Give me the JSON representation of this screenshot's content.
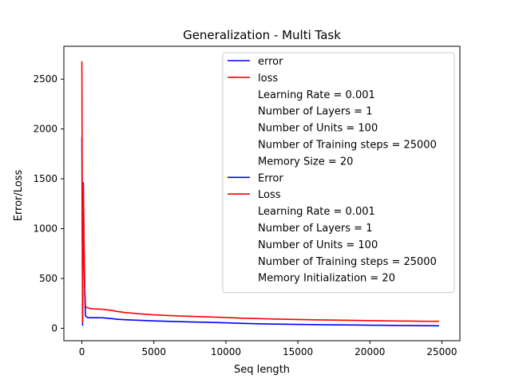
{
  "chart_data": {
    "type": "line",
    "title": "Generalization - Multi Task",
    "xlabel": "Seq length",
    "ylabel": "Error/Loss",
    "xlim": [
      -1250,
      26250
    ],
    "ylim": [
      -125,
      2830
    ],
    "xticks": [
      0,
      5000,
      10000,
      15000,
      20000,
      25000
    ],
    "xtick_labels": [
      "0",
      "5000",
      "10000",
      "15000",
      "20000",
      "25000"
    ],
    "yticks": [
      0,
      500,
      1000,
      1500,
      2000,
      2500
    ],
    "ytick_labels": [
      "0",
      "500",
      "1000",
      "1500",
      "2000",
      "2500"
    ],
    "grid": false,
    "legend_position": "top-right",
    "series": [
      {
        "name": "error",
        "color": "#0000ff",
        "x": [
          0,
          50,
          100,
          150,
          200,
          250,
          300,
          400,
          500,
          750,
          1000,
          1500,
          2000,
          2500,
          3000,
          4000,
          5000,
          6000,
          7000,
          8000,
          9000,
          10000,
          11000,
          12000,
          13000,
          14000,
          15000,
          16000,
          17000,
          18000,
          19000,
          20000,
          21000,
          22000,
          23000,
          24000,
          24800
        ],
        "y": [
          1920,
          30,
          1460,
          780,
          330,
          130,
          115,
          108,
          106,
          106,
          106,
          105,
          98,
          90,
          86,
          80,
          74,
          70,
          66,
          62,
          59,
          55,
          50,
          46,
          43,
          41,
          39,
          37,
          35,
          34,
          33,
          31,
          30,
          28,
          27,
          26,
          25
        ]
      },
      {
        "name": "loss",
        "color": "#ff0000",
        "x": [
          0,
          50,
          100,
          150,
          200,
          250,
          300,
          400,
          500,
          750,
          1000,
          1500,
          2000,
          2500,
          3000,
          4000,
          5000,
          6000,
          7000,
          8000,
          9000,
          10000,
          11000,
          12000,
          13000,
          14000,
          15000,
          16000,
          17000,
          18000,
          19000,
          20000,
          21000,
          22000,
          23000,
          24000,
          24800
        ],
        "y": [
          2680,
          60,
          1450,
          900,
          420,
          225,
          210,
          205,
          200,
          195,
          193,
          190,
          180,
          168,
          158,
          145,
          135,
          128,
          122,
          118,
          113,
          108,
          102,
          98,
          94,
          91,
          88,
          85,
          83,
          81,
          79,
          77,
          75,
          73,
          72,
          70,
          70
        ]
      }
    ],
    "legend": [
      {
        "label": "error",
        "color": "#0000ff"
      },
      {
        "label": "loss",
        "color": "#ff0000"
      },
      {
        "label": "Learning Rate = 0.001",
        "color": null
      },
      {
        "label": "Number of Layers = 1",
        "color": null
      },
      {
        "label": "Number of Units = 100",
        "color": null
      },
      {
        "label": "Number of Training steps = 25000",
        "color": null
      },
      {
        "label": "Memory Size = 20",
        "color": null
      },
      {
        "label": "Error",
        "color": "#0000ff"
      },
      {
        "label": "Loss",
        "color": "#ff0000"
      },
      {
        "label": "Learning Rate = 0.001",
        "color": null
      },
      {
        "label": "Number of Layers = 1",
        "color": null
      },
      {
        "label": "Number of Units = 100",
        "color": null
      },
      {
        "label": "Number of Training steps = 25000",
        "color": null
      },
      {
        "label": "Memory Initialization = 20",
        "color": null
      }
    ]
  }
}
